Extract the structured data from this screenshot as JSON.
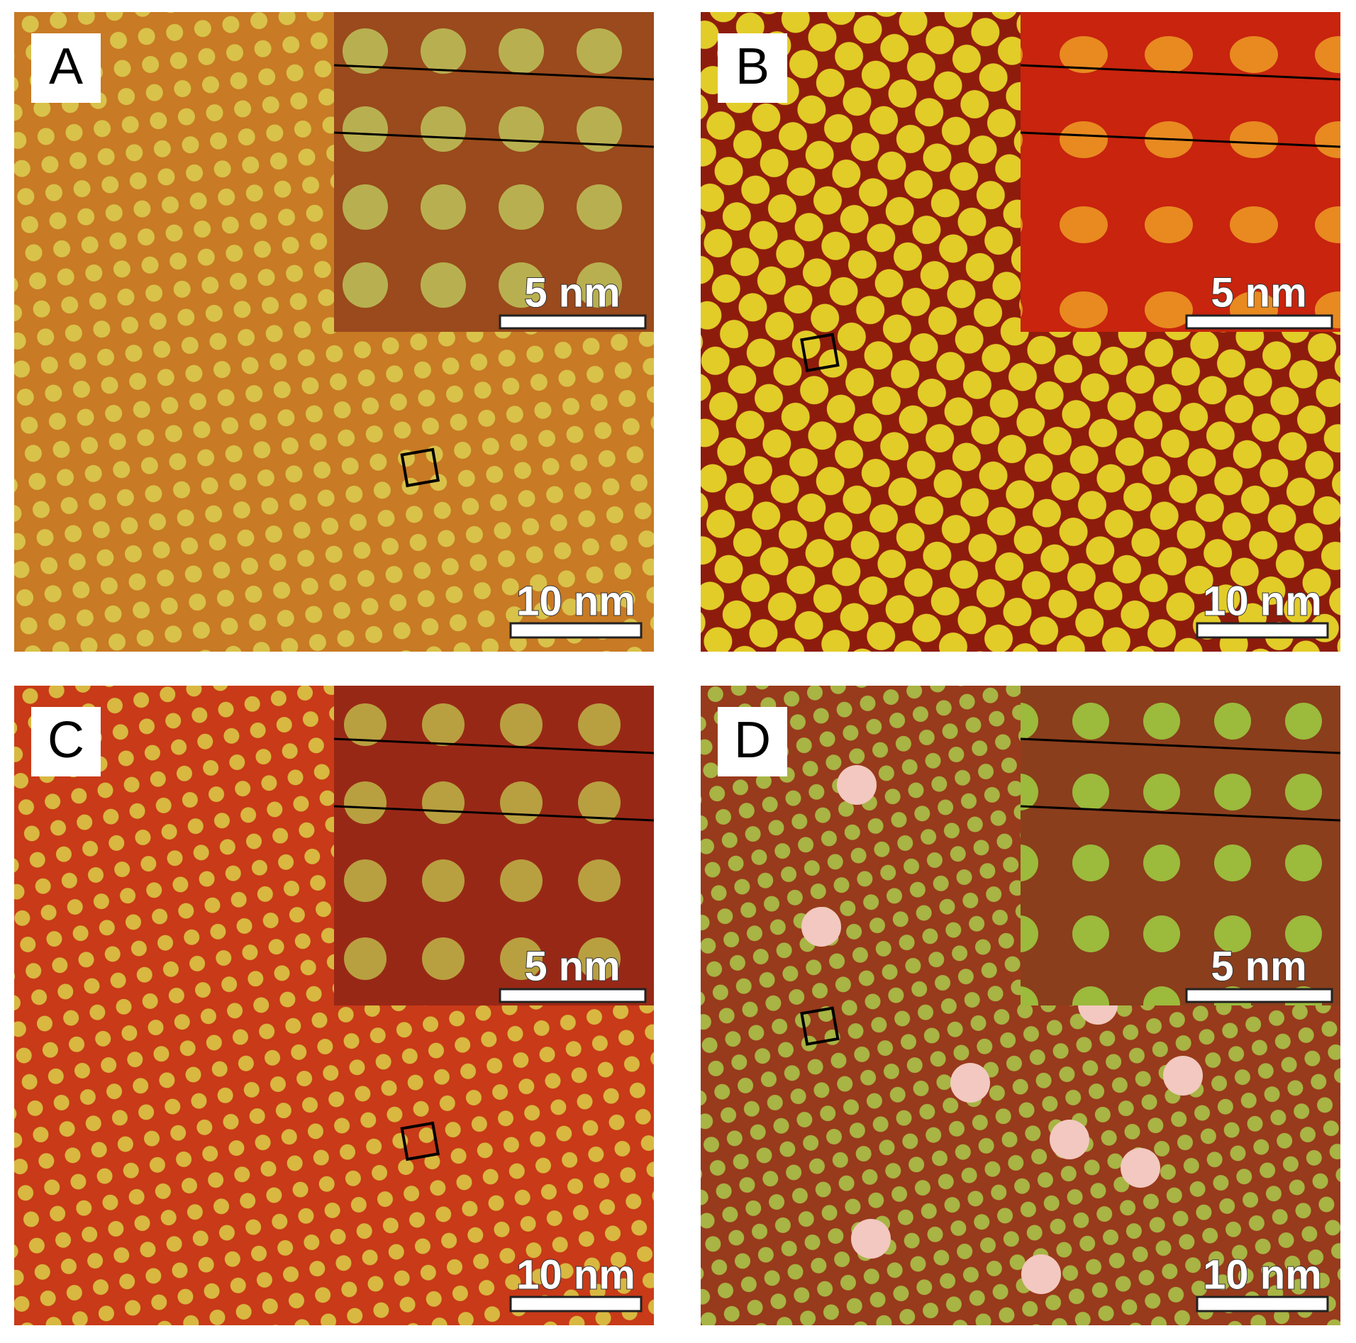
{
  "panels": [
    {
      "label": "A",
      "scale_main": "10 nm",
      "scale_inset": "5 nm"
    },
    {
      "label": "B",
      "scale_main": "10 nm",
      "scale_inset": "5 nm"
    },
    {
      "label": "C",
      "scale_main": "10 nm",
      "scale_inset": "5 nm"
    },
    {
      "label": "D",
      "scale_main": "10 nm",
      "scale_inset": "5 nm"
    }
  ]
}
